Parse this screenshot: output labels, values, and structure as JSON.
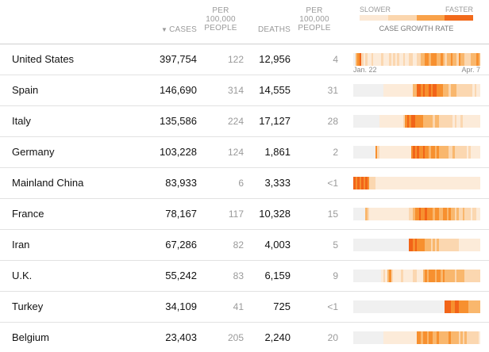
{
  "header": {
    "cases": "Cases",
    "sort_icon": "sort-desc-triangle",
    "cases_per": [
      "Per",
      "100,000",
      "people"
    ],
    "deaths": "Deaths",
    "deaths_per": [
      "Per",
      "100,000",
      "people"
    ]
  },
  "legend": {
    "slower": "Slower",
    "faster": "Faster",
    "title": "Case growth rate",
    "colors": [
      "#fce8d4",
      "#fbd6ae",
      "#f9a24a",
      "#f26a1b"
    ]
  },
  "axis": {
    "start": "Jan. 22",
    "end": "Apr. 7"
  },
  "growth_colors": [
    "#f0f0f0",
    "#fcebd9",
    "#fbd7b0",
    "#f9b76d",
    "#f7902f",
    "#f26418"
  ],
  "rows": [
    {
      "country": "United States",
      "cases": "397,754",
      "cases_per": "122",
      "deaths": "12,956",
      "deaths_per": "4",
      "growth": [
        0,
        3,
        4,
        5,
        2,
        1,
        2,
        1,
        1,
        2,
        1,
        1,
        1,
        1,
        2,
        1,
        1,
        1,
        2,
        1,
        2,
        1,
        2,
        1,
        1,
        2,
        1,
        1,
        2,
        2,
        1,
        1,
        2,
        2,
        3,
        3,
        4,
        4,
        3,
        4,
        4,
        4,
        3,
        3,
        4,
        3,
        2,
        3,
        3,
        4,
        3,
        3,
        2,
        4,
        3,
        3,
        2,
        2,
        2,
        3,
        3,
        3,
        4,
        3
      ]
    },
    {
      "country": "Spain",
      "cases": "146,690",
      "cases_per": "314",
      "deaths": "14,555",
      "deaths_per": "31",
      "growth": [
        0,
        0,
        0,
        0,
        0,
        0,
        0,
        0,
        0,
        0,
        0,
        0,
        0,
        0,
        0,
        1,
        1,
        1,
        1,
        1,
        1,
        1,
        1,
        1,
        1,
        1,
        1,
        1,
        1,
        1,
        3,
        3,
        5,
        5,
        4,
        5,
        4,
        4,
        5,
        4,
        5,
        5,
        4,
        4,
        4,
        3,
        3,
        3,
        2,
        3,
        3,
        3,
        2,
        2,
        2,
        2,
        2,
        2,
        2,
        2,
        1,
        2,
        1,
        1
      ]
    },
    {
      "country": "Italy",
      "cases": "135,586",
      "cases_per": "224",
      "deaths": "17,127",
      "deaths_per": "28",
      "growth": [
        0,
        0,
        0,
        0,
        0,
        0,
        0,
        0,
        0,
        0,
        0,
        0,
        0,
        1,
        1,
        1,
        1,
        1,
        1,
        1,
        1,
        1,
        1,
        1,
        1,
        2,
        4,
        5,
        4,
        5,
        5,
        4,
        4,
        4,
        4,
        3,
        3,
        3,
        3,
        3,
        2,
        3,
        3,
        2,
        2,
        2,
        2,
        2,
        2,
        2,
        1,
        2,
        1,
        1,
        2,
        1,
        1,
        1,
        1,
        1,
        1,
        1,
        1,
        1
      ]
    },
    {
      "country": "Germany",
      "cases": "103,228",
      "cases_per": "124",
      "deaths": "1,861",
      "deaths_per": "2",
      "growth": [
        0,
        0,
        0,
        0,
        0,
        0,
        0,
        0,
        0,
        0,
        0,
        4,
        2,
        1,
        1,
        1,
        1,
        1,
        1,
        1,
        1,
        1,
        1,
        1,
        1,
        1,
        1,
        1,
        1,
        4,
        5,
        4,
        5,
        4,
        4,
        5,
        4,
        4,
        3,
        4,
        4,
        3,
        4,
        3,
        3,
        3,
        3,
        3,
        2,
        2,
        3,
        2,
        2,
        2,
        2,
        2,
        2,
        1,
        2,
        1,
        1,
        1,
        1,
        1
      ]
    },
    {
      "country": "Mainland China",
      "cases": "83,933",
      "cases_per": "6",
      "deaths": "3,333",
      "deaths_per": "<1",
      "growth": [
        5,
        4,
        5,
        4,
        5,
        4,
        5,
        4,
        2,
        2,
        2,
        1,
        1,
        1,
        1,
        1,
        1,
        1,
        1,
        1,
        1,
        1,
        1,
        1,
        1,
        1,
        1,
        1,
        1,
        1,
        1,
        1,
        1,
        1,
        1,
        1,
        1,
        1,
        1,
        1,
        1,
        1,
        1,
        1,
        1,
        1,
        1,
        1,
        1,
        1,
        1,
        1,
        1,
        1,
        1,
        1,
        1,
        1,
        1,
        1,
        1,
        1,
        1,
        1
      ]
    },
    {
      "country": "France",
      "cases": "78,167",
      "cases_per": "117",
      "deaths": "10,328",
      "deaths_per": "15",
      "growth": [
        0,
        0,
        0,
        0,
        0,
        0,
        3,
        2,
        1,
        1,
        1,
        1,
        1,
        1,
        1,
        1,
        1,
        1,
        1,
        1,
        1,
        1,
        1,
        1,
        1,
        1,
        1,
        1,
        2,
        2,
        3,
        4,
        4,
        5,
        4,
        4,
        5,
        4,
        4,
        4,
        3,
        4,
        4,
        3,
        3,
        4,
        4,
        3,
        4,
        3,
        3,
        2,
        3,
        2,
        2,
        3,
        2,
        2,
        2,
        1,
        2,
        2,
        1,
        1
      ]
    },
    {
      "country": "Iran",
      "cases": "67,286",
      "cases_per": "82",
      "deaths": "4,003",
      "deaths_per": "5",
      "growth": [
        0,
        0,
        0,
        0,
        0,
        0,
        0,
        0,
        0,
        0,
        0,
        0,
        0,
        0,
        0,
        0,
        0,
        0,
        0,
        0,
        0,
        0,
        0,
        0,
        0,
        0,
        0,
        0,
        5,
        5,
        4,
        5,
        4,
        4,
        4,
        4,
        3,
        3,
        3,
        2,
        3,
        2,
        3,
        2,
        2,
        2,
        2,
        2,
        2,
        2,
        2,
        2,
        2,
        1,
        1,
        1,
        1,
        1,
        1,
        1,
        1,
        1,
        1,
        1
      ]
    },
    {
      "country": "U.K.",
      "cases": "55,242",
      "cases_per": "83",
      "deaths": "6,159",
      "deaths_per": "9",
      "growth": [
        0,
        0,
        0,
        0,
        0,
        0,
        0,
        0,
        0,
        0,
        0,
        0,
        0,
        0,
        1,
        2,
        1,
        3,
        4,
        2,
        1,
        1,
        1,
        1,
        2,
        1,
        1,
        1,
        1,
        1,
        2,
        2,
        1,
        1,
        1,
        3,
        4,
        3,
        4,
        4,
        4,
        3,
        4,
        4,
        3,
        4,
        3,
        3,
        3,
        3,
        3,
        2,
        3,
        3,
        3,
        3,
        2,
        2,
        2,
        2,
        2,
        2,
        2,
        2
      ]
    },
    {
      "country": "Turkey",
      "cases": "34,109",
      "cases_per": "41",
      "deaths": "725",
      "deaths_per": "<1",
      "growth": [
        0,
        0,
        0,
        0,
        0,
        0,
        0,
        0,
        0,
        0,
        0,
        0,
        0,
        0,
        0,
        0,
        0,
        0,
        0,
        0,
        0,
        0,
        0,
        0,
        0,
        0,
        0,
        0,
        0,
        0,
        0,
        0,
        0,
        0,
        0,
        0,
        0,
        0,
        0,
        0,
        0,
        0,
        0,
        0,
        0,
        0,
        5,
        5,
        5,
        4,
        4,
        5,
        5,
        4,
        4,
        4,
        4,
        4,
        3,
        3,
        3,
        3,
        3,
        3
      ]
    },
    {
      "country": "Belgium",
      "cases": "23,403",
      "cases_per": "205",
      "deaths": "2,240",
      "deaths_per": "20",
      "growth": [
        0,
        0,
        0,
        0,
        0,
        0,
        0,
        0,
        0,
        0,
        0,
        0,
        0,
        0,
        0,
        1,
        1,
        1,
        1,
        1,
        1,
        1,
        1,
        1,
        1,
        1,
        1,
        1,
        1,
        1,
        1,
        1,
        4,
        4,
        3,
        4,
        4,
        3,
        4,
        4,
        3,
        3,
        4,
        3,
        3,
        3,
        3,
        3,
        4,
        3,
        3,
        3,
        3,
        2,
        3,
        2,
        3,
        2,
        2,
        2,
        2,
        2,
        2,
        1
      ]
    }
  ]
}
